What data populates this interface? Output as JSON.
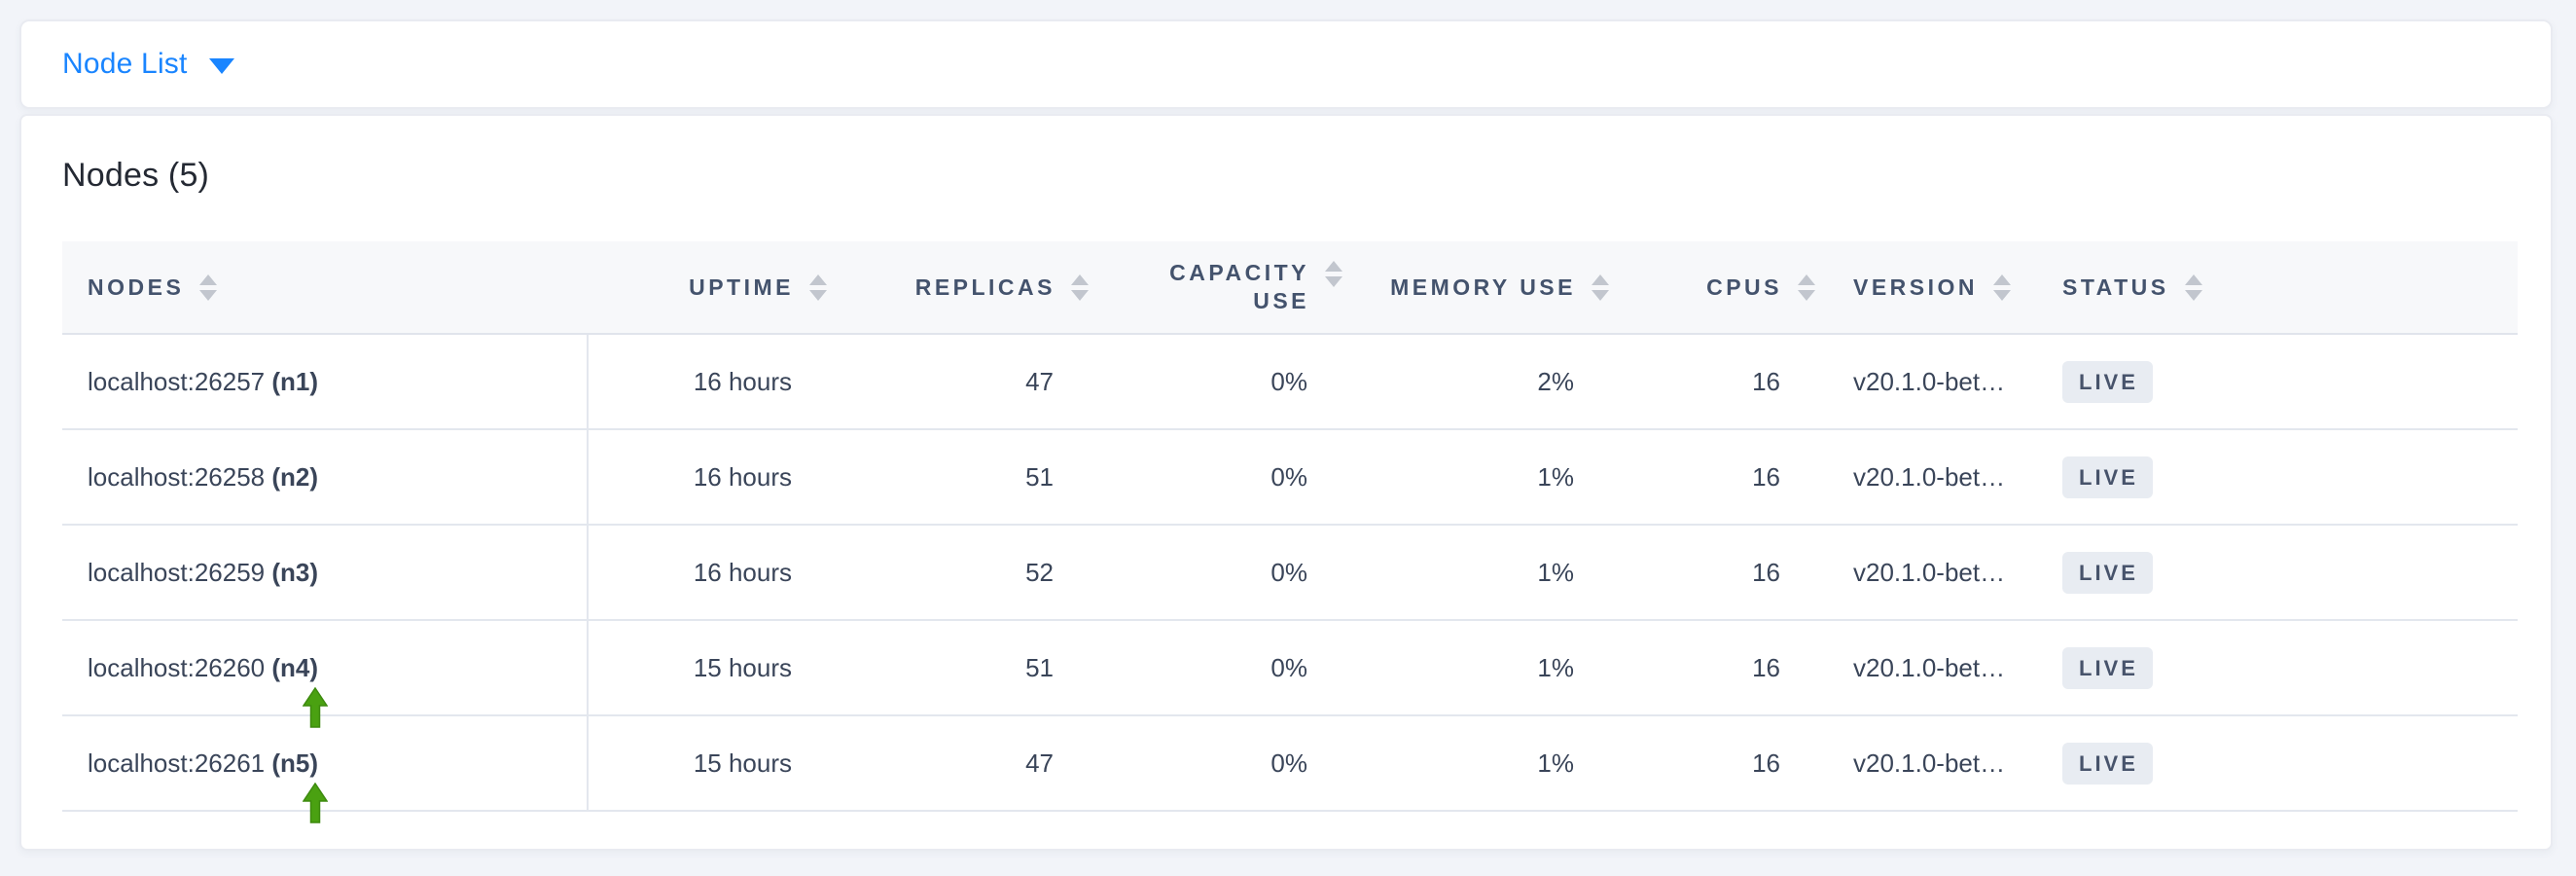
{
  "dropdown": {
    "label": "Node List",
    "icon": "chevron-down"
  },
  "card": {
    "title": "Nodes (5)"
  },
  "table": {
    "columns": [
      {
        "key": "nodes",
        "label": "NODES",
        "align": "left"
      },
      {
        "key": "uptime",
        "label": "UPTIME",
        "align": "right"
      },
      {
        "key": "replicas",
        "label": "REPLICAS",
        "align": "right"
      },
      {
        "key": "capacity_use",
        "label": "CAPACITY USE",
        "label_lines": [
          "CAPACITY",
          "USE"
        ],
        "align": "right"
      },
      {
        "key": "memory_use",
        "label": "MEMORY USE",
        "align": "right"
      },
      {
        "key": "cpus",
        "label": "CPUS",
        "align": "right"
      },
      {
        "key": "version",
        "label": "VERSION",
        "align": "left"
      },
      {
        "key": "status",
        "label": "STATUS",
        "align": "left"
      }
    ],
    "rows": [
      {
        "address": "localhost:26257",
        "node_id": "(n1)",
        "uptime": "16 hours",
        "replicas": "47",
        "capacity_use": "0%",
        "memory_use": "2%",
        "cpus": "16",
        "version": "v20.1.0-bet…",
        "status": "LIVE"
      },
      {
        "address": "localhost:26258",
        "node_id": "(n2)",
        "uptime": "16 hours",
        "replicas": "51",
        "capacity_use": "0%",
        "memory_use": "1%",
        "cpus": "16",
        "version": "v20.1.0-bet…",
        "status": "LIVE"
      },
      {
        "address": "localhost:26259",
        "node_id": "(n3)",
        "uptime": "16 hours",
        "replicas": "52",
        "capacity_use": "0%",
        "memory_use": "1%",
        "cpus": "16",
        "version": "v20.1.0-bet…",
        "status": "LIVE"
      },
      {
        "address": "localhost:26260",
        "node_id": "(n4)",
        "uptime": "15 hours",
        "replicas": "51",
        "capacity_use": "0%",
        "memory_use": "1%",
        "cpus": "16",
        "version": "v20.1.0-bet…",
        "status": "LIVE"
      },
      {
        "address": "localhost:26261",
        "node_id": "(n5)",
        "uptime": "15 hours",
        "replicas": "47",
        "capacity_use": "0%",
        "memory_use": "1%",
        "cpus": "16",
        "version": "v20.1.0-bet…",
        "status": "LIVE"
      }
    ]
  },
  "annotations": {
    "arrows": [
      {
        "target": "n4"
      },
      {
        "target": "n5"
      }
    ],
    "arrow_color": "#4aa111"
  },
  "colors": {
    "accent_blue": "#1a85ff",
    "page_background": "#f2f4f9",
    "header_background": "#f7f8fa",
    "header_text": "#44536d",
    "cell_text": "#3a4559",
    "badge_background": "#e8ecf2",
    "badge_text": "#47536b",
    "row_border": "#e3e7ee",
    "arrow_green": "#4aa111"
  }
}
